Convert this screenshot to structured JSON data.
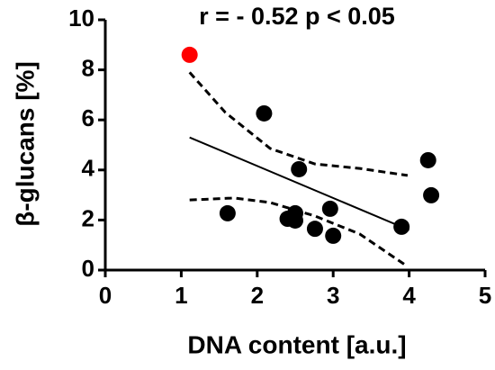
{
  "chart_data": {
    "type": "scatter",
    "title": "r = - 0.52 p < 0.05",
    "x_label": "DNA content [a.u.]",
    "y_label": "β-glucans [%]",
    "x": [
      1.11,
      1.61,
      2.09,
      2.55,
      2.4,
      2.5,
      2.5,
      2.76,
      2.96,
      3.0,
      3.9,
      4.25,
      4.29
    ],
    "y": [
      8.6,
      2.27,
      6.26,
      4.03,
      2.05,
      2.27,
      1.98,
      1.65,
      2.45,
      1.37,
      1.73,
      4.39,
      2.99
    ],
    "point_colors": [
      "#ff0000",
      "#000000",
      "#000000",
      "#000000",
      "#000000",
      "#000000",
      "#000000",
      "#000000",
      "#000000",
      "#000000",
      "#000000",
      "#000000",
      "#000000"
    ],
    "fit": {
      "x": [
        1.11,
        4.0
      ],
      "y": [
        5.3,
        1.6
      ]
    },
    "ci_upper": {
      "x": [
        1.11,
        1.58,
        2.17,
        2.76,
        3.35,
        3.98
      ],
      "y": [
        7.9,
        6.3,
        4.86,
        4.24,
        4.06,
        3.78
      ]
    },
    "ci_lower": {
      "x": [
        1.11,
        1.7,
        2.17,
        2.76,
        3.35,
        3.98
      ],
      "y": [
        2.8,
        2.88,
        2.7,
        2.16,
        1.44,
        0.14
      ]
    },
    "xlim": [
      0,
      5
    ],
    "xticks": [
      0,
      1,
      2,
      3,
      4,
      5
    ],
    "ylim": [
      0,
      10
    ],
    "yticks": [
      0,
      2,
      4,
      6,
      8,
      10
    ]
  }
}
